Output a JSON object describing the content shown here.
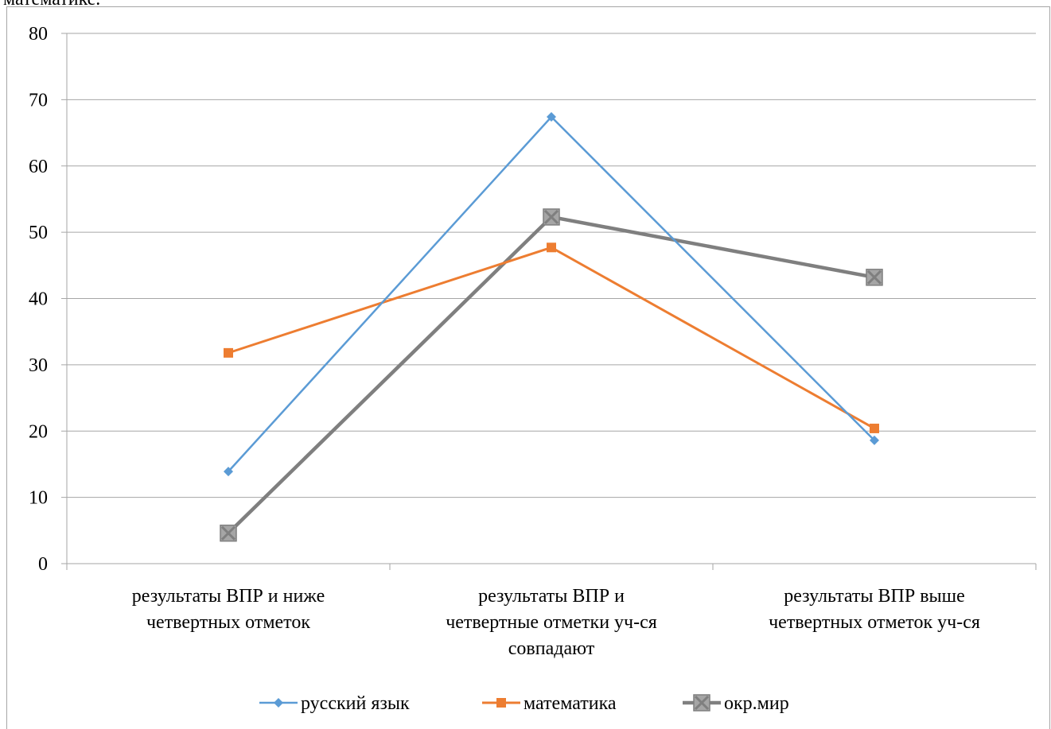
{
  "header": {
    "partial_text": "математике."
  },
  "chart_data": {
    "type": "line",
    "title": "",
    "xlabel": "",
    "ylabel": "",
    "ylim": [
      0,
      80
    ],
    "yticks": [
      "0",
      "10",
      "20",
      "30",
      "40",
      "50",
      "60",
      "70",
      "80"
    ],
    "grid": true,
    "legend_position": "bottom",
    "categories": [
      [
        "результаты ВПР и ниже",
        "четвертных отметок"
      ],
      [
        "результаты ВПР и",
        "четвертные  отметки уч-ся",
        "совпадают"
      ],
      [
        "результаты ВПР выше",
        "четвертных отметок уч-ся"
      ]
    ],
    "series": [
      {
        "name": "русский язык",
        "values": [
          13.9,
          67.4,
          18.6
        ],
        "color": "#5b9bd5",
        "marker": "diamond"
      },
      {
        "name": "математика",
        "values": [
          31.8,
          47.7,
          20.4
        ],
        "color": "#ed7d31",
        "marker": "square"
      },
      {
        "name": "окр.мир",
        "values": [
          4.6,
          52.3,
          43.2
        ],
        "color": "#7f7f7f",
        "marker": "x-square"
      }
    ]
  }
}
